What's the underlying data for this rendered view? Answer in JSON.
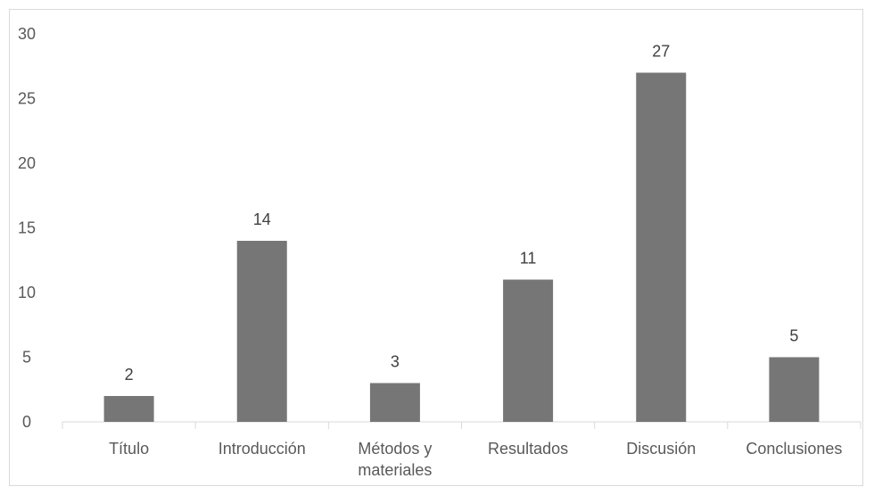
{
  "chart_data": {
    "type": "bar",
    "title": "",
    "xlabel": "",
    "ylabel": "",
    "categories": [
      "Título",
      "Introducción",
      "Métodos y materiales",
      "Resultados",
      "Discusión",
      "Conclusiones"
    ],
    "category_lines": [
      [
        "Título"
      ],
      [
        "Introducción"
      ],
      [
        "Métodos y",
        "materiales"
      ],
      [
        "Resultados"
      ],
      [
        "Discusión"
      ],
      [
        "Conclusiones"
      ]
    ],
    "values": [
      2,
      14,
      3,
      11,
      27,
      5
    ],
    "data_labels": [
      "2",
      "14",
      "3",
      "11",
      "27",
      "5"
    ],
    "ylim": [
      0,
      30
    ],
    "yticks": [
      "0",
      "5",
      "10",
      "15",
      "20",
      "25",
      "30"
    ],
    "grid": false,
    "legend": "none",
    "bar_color": "#767676",
    "axis_color": "#d9d9d9",
    "text_color": "#595959"
  }
}
